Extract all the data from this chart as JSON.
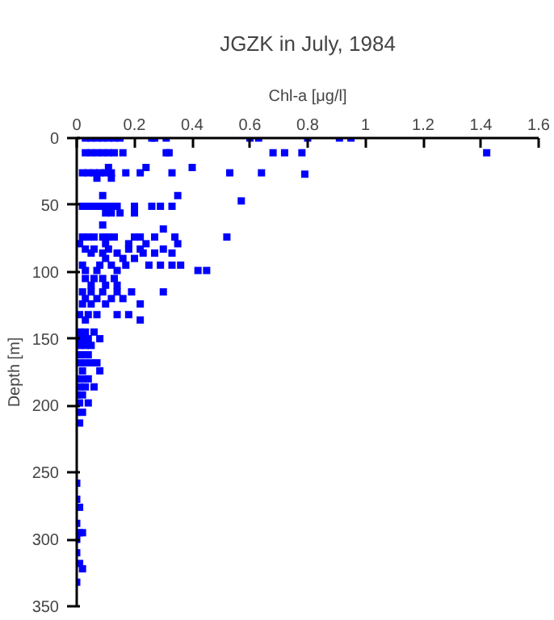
{
  "chart_data": {
    "type": "scatter",
    "title": "JGZK in July, 1984",
    "xlabel": "Chl-a [μg/l]",
    "ylabel": "Depth [m]",
    "xlim": [
      0,
      1.6
    ],
    "xticks": [
      0,
      0.2,
      0.4,
      0.6,
      0.8,
      1,
      1.2,
      1.4,
      1.6
    ],
    "ylim": [
      350,
      0
    ],
    "yticks": [
      0,
      50,
      100,
      150,
      200,
      250,
      300,
      350
    ],
    "grid": false,
    "marker": "square",
    "series": [
      {
        "color": "#0000ff",
        "x": [
          0.03,
          0.05,
          0.07,
          0.09,
          0.11,
          0.13,
          0.15,
          0.26,
          0.27,
          0.31,
          0.6,
          0.63,
          0.8,
          0.91,
          0.95,
          0.03,
          0.05,
          0.07,
          0.09,
          0.11,
          0.13,
          0.16,
          0.31,
          0.32,
          0.68,
          0.72,
          0.78,
          1.42,
          0.11,
          0.24,
          0.4,
          0.02,
          0.04,
          0.06,
          0.08,
          0.1,
          0.12,
          0.17,
          0.22,
          0.33,
          0.53,
          0.64,
          0.79,
          0.07,
          0.12,
          0.09,
          0.35,
          0.57,
          0.02,
          0.04,
          0.06,
          0.08,
          0.1,
          0.12,
          0.14,
          0.2,
          0.26,
          0.29,
          0.33,
          0.1,
          0.12,
          0.15,
          0.2,
          0.09,
          0.3,
          0.02,
          0.04,
          0.06,
          0.09,
          0.11,
          0.13,
          0.2,
          0.22,
          0.27,
          0.34,
          0.52,
          0.01,
          0.1,
          0.18,
          0.24,
          0.35,
          0.03,
          0.06,
          0.11,
          0.18,
          0.22,
          0.3,
          0.05,
          0.09,
          0.14,
          0.23,
          0.27,
          0.33,
          0.1,
          0.16,
          0.2,
          0.02,
          0.08,
          0.12,
          0.17,
          0.25,
          0.29,
          0.33,
          0.36,
          0.03,
          0.07,
          0.14,
          0.42,
          0.45,
          0.03,
          0.06,
          0.09,
          0.13,
          0.05,
          0.1,
          0.14,
          0.02,
          0.05,
          0.09,
          0.14,
          0.19,
          0.3,
          0.03,
          0.07,
          0.12,
          0.16,
          0.02,
          0.05,
          0.1,
          0.22,
          0.01,
          0.04,
          0.07,
          0.14,
          0.18,
          0.03,
          0.22,
          0.01,
          0.03,
          0.06,
          0.0,
          0.02,
          0.04,
          0.08,
          0.01,
          0.03,
          0.05,
          0.0,
          0.02,
          0.04,
          0.01,
          0.03,
          0.05,
          0.07,
          0.02,
          0.08,
          0.0,
          0.02,
          0.04,
          0.01,
          0.03,
          0.06,
          0.0,
          0.02,
          0.01,
          0.04,
          0.0,
          0.02,
          0.01,
          0.0,
          0.0,
          0.01,
          0.0,
          0.01,
          0.02,
          0.0,
          0.0,
          0.01,
          0.02,
          0.0
        ],
        "values": [
          0,
          0,
          0,
          0,
          0,
          0,
          0,
          0,
          0,
          0,
          0,
          0,
          0,
          0,
          0,
          11,
          11,
          11,
          11,
          11,
          11,
          11,
          11,
          11,
          11,
          11,
          11,
          11,
          22,
          22,
          22,
          26,
          26,
          26,
          26,
          26,
          26,
          26,
          26,
          26,
          26,
          26,
          27,
          30,
          30,
          43,
          43,
          47,
          51,
          51,
          51,
          51,
          51,
          51,
          51,
          51,
          51,
          51,
          51,
          56,
          56,
          56,
          56,
          65,
          68,
          74,
          74,
          74,
          74,
          74,
          74,
          74,
          74,
          74,
          74,
          74,
          79,
          79,
          79,
          79,
          79,
          83,
          83,
          83,
          83,
          83,
          83,
          86,
          86,
          86,
          86,
          86,
          86,
          90,
          90,
          90,
          95,
          95,
          95,
          95,
          95,
          95,
          95,
          95,
          99,
          99,
          99,
          99,
          99,
          105,
          105,
          105,
          105,
          110,
          110,
          110,
          115,
          115,
          115,
          115,
          115,
          115,
          120,
          120,
          120,
          120,
          124,
          124,
          124,
          124,
          132,
          132,
          132,
          132,
          132,
          136,
          136,
          145,
          145,
          145,
          150,
          150,
          150,
          150,
          155,
          155,
          155,
          162,
          162,
          162,
          168,
          168,
          168,
          168,
          174,
          174,
          180,
          180,
          180,
          186,
          186,
          186,
          192,
          192,
          198,
          198,
          205,
          205,
          213,
          258,
          270,
          276,
          288,
          295,
          295,
          300,
          310,
          318,
          322,
          332
        ]
      }
    ]
  }
}
